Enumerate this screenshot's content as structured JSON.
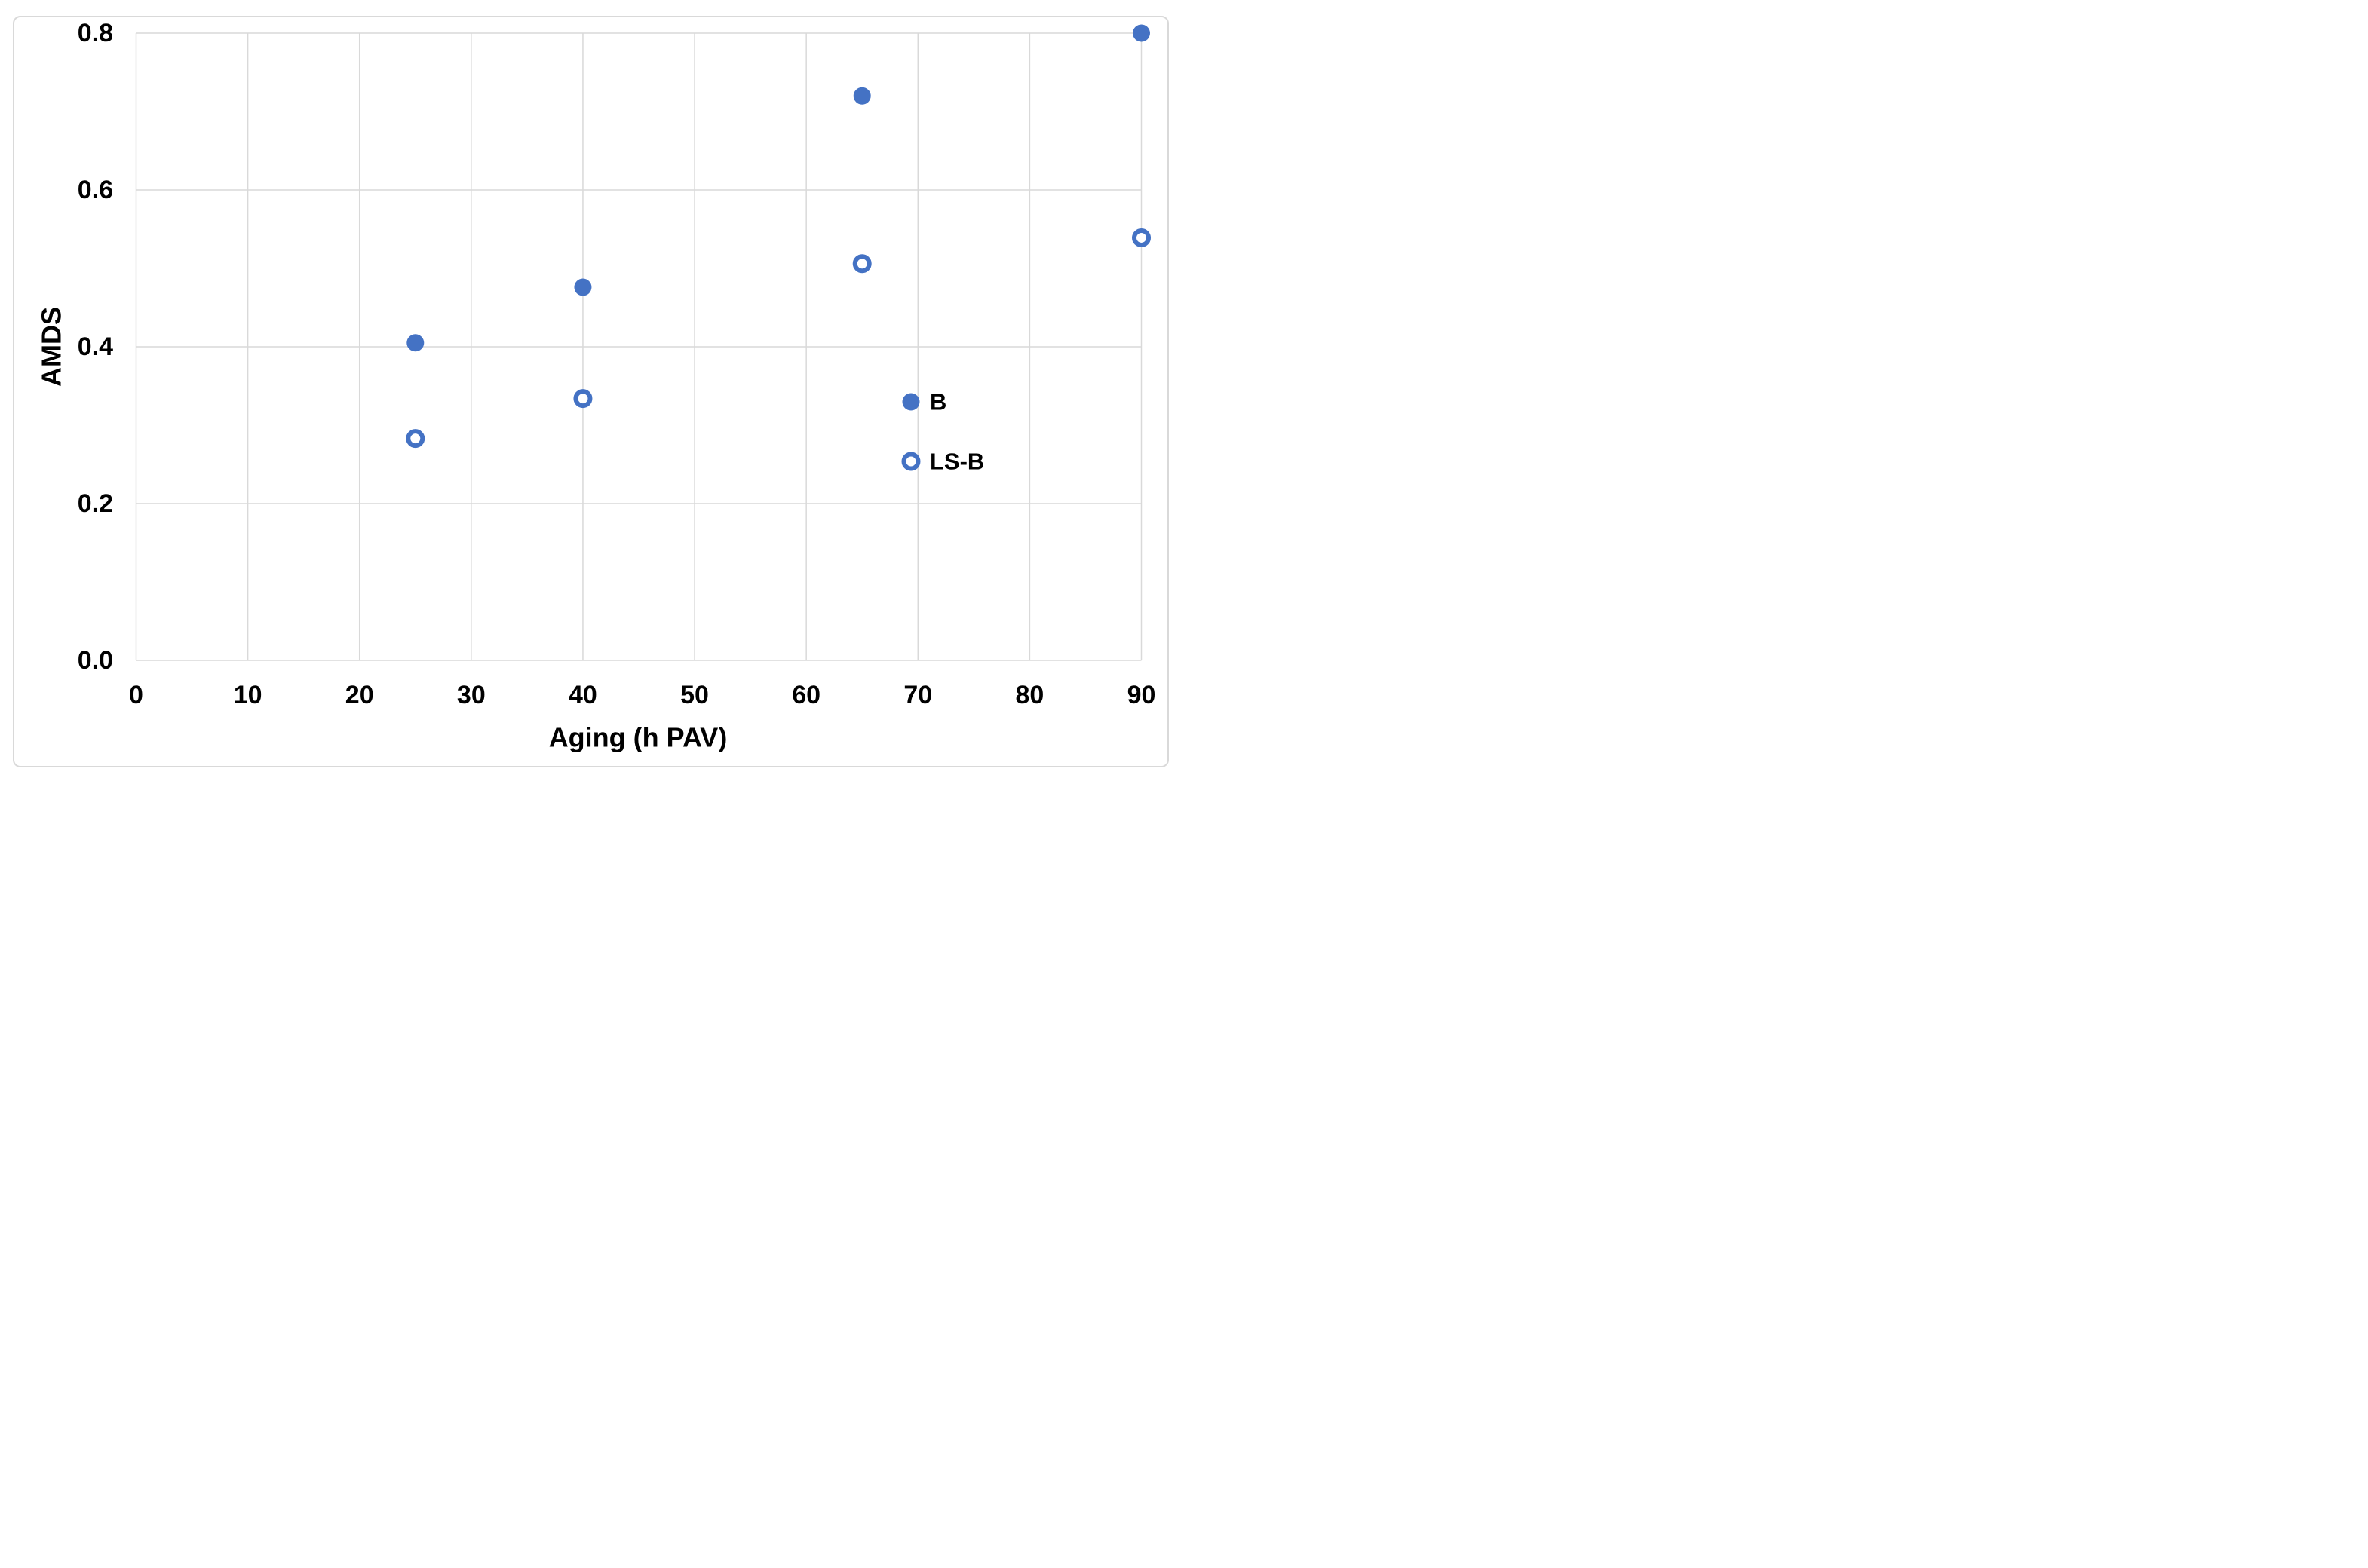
{
  "chart_data": {
    "type": "scatter",
    "title": "",
    "xlabel": "Aging (h PAV)",
    "ylabel": "AMDS",
    "xlim": [
      0,
      90
    ],
    "ylim": [
      0.0,
      0.8
    ],
    "xticks": {
      "values": [
        0,
        10,
        20,
        30,
        40,
        50,
        60,
        70,
        80,
        90
      ],
      "labels": [
        "0",
        "10",
        "20",
        "30",
        "40",
        "50",
        "60",
        "70",
        "80",
        "90"
      ]
    },
    "yticks": {
      "values": [
        0.0,
        0.2,
        0.4,
        0.6,
        0.8
      ],
      "labels": [
        "0.0",
        "0.2",
        "0.4",
        "0.6",
        "0.8"
      ]
    },
    "grid": true,
    "legend_position": "inside-right",
    "series": [
      {
        "name": "B",
        "marker": "filled-circle",
        "color": "#4472C4",
        "points": [
          [
            25,
            0.405
          ],
          [
            40,
            0.476
          ],
          [
            65,
            0.72
          ],
          [
            90,
            0.8
          ]
        ]
      },
      {
        "name": "LS-B",
        "marker": "open-circle",
        "color": "#4472C4",
        "points": [
          [
            25,
            0.283
          ],
          [
            40,
            0.334
          ],
          [
            65,
            0.506
          ],
          [
            90,
            0.539
          ]
        ]
      }
    ]
  },
  "colors": {
    "marker_blue": "#4472C4",
    "gridline": "#D9D9D9",
    "frame_border": "#D9D9D9",
    "text": "#000000",
    "background": "#FFFFFF"
  }
}
